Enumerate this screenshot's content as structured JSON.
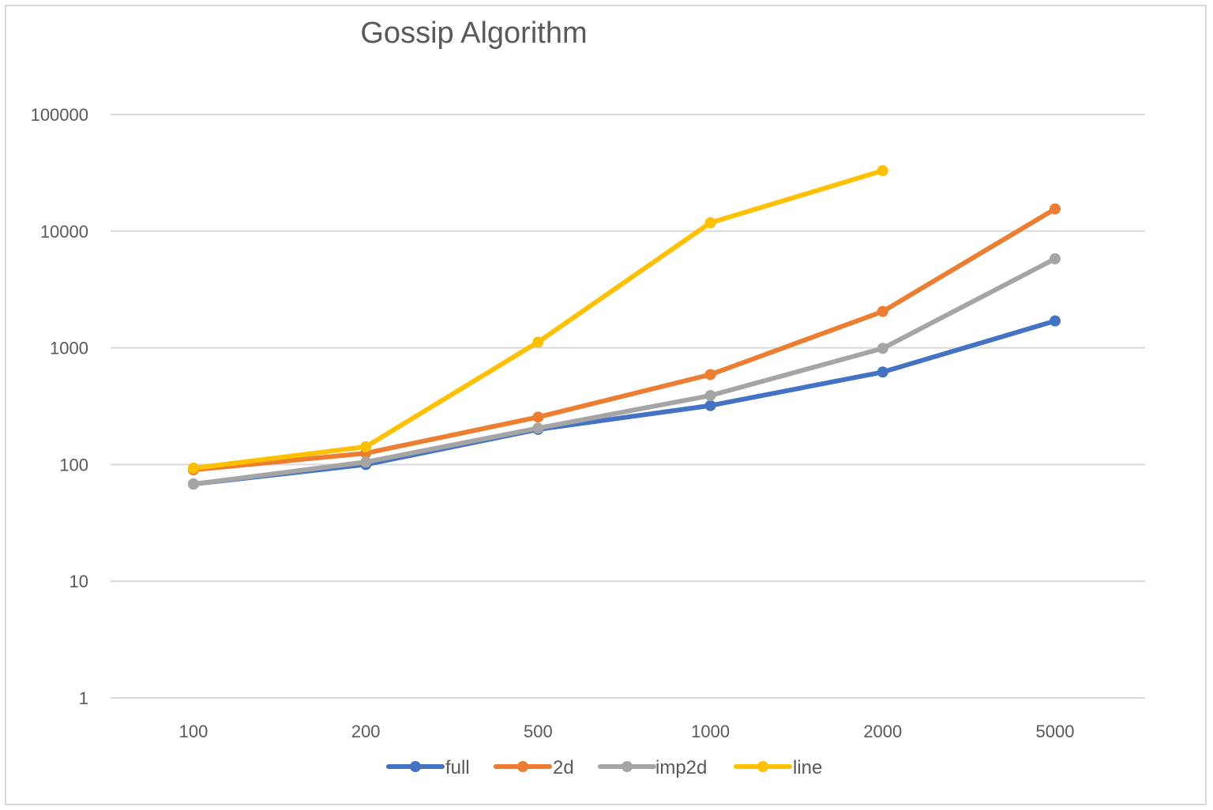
{
  "chart_data": {
    "type": "line",
    "title": "Gossip Algorithm",
    "xlabel": "",
    "ylabel": "",
    "y_scale": "log",
    "ylim": [
      1,
      100000
    ],
    "y_ticks": [
      "1",
      "10",
      "100",
      "1000",
      "10000",
      "100000"
    ],
    "grid": true,
    "legend_position": "bottom",
    "categories": [
      "100",
      "200",
      "500",
      "1000",
      "2000",
      "5000"
    ],
    "series": [
      {
        "name": "full",
        "color": "#4472c4",
        "values": [
          68,
          100,
          200,
          320,
          620,
          1700
        ]
      },
      {
        "name": "2d",
        "color": "#ed7d31",
        "values": [
          90,
          125,
          255,
          590,
          2050,
          15500
        ]
      },
      {
        "name": "imp2d",
        "color": "#a5a5a5",
        "values": [
          68,
          105,
          205,
          390,
          990,
          5800
        ]
      },
      {
        "name": "line",
        "color": "#ffc000",
        "values": [
          93,
          142,
          1120,
          11800,
          33000,
          null
        ]
      }
    ]
  }
}
